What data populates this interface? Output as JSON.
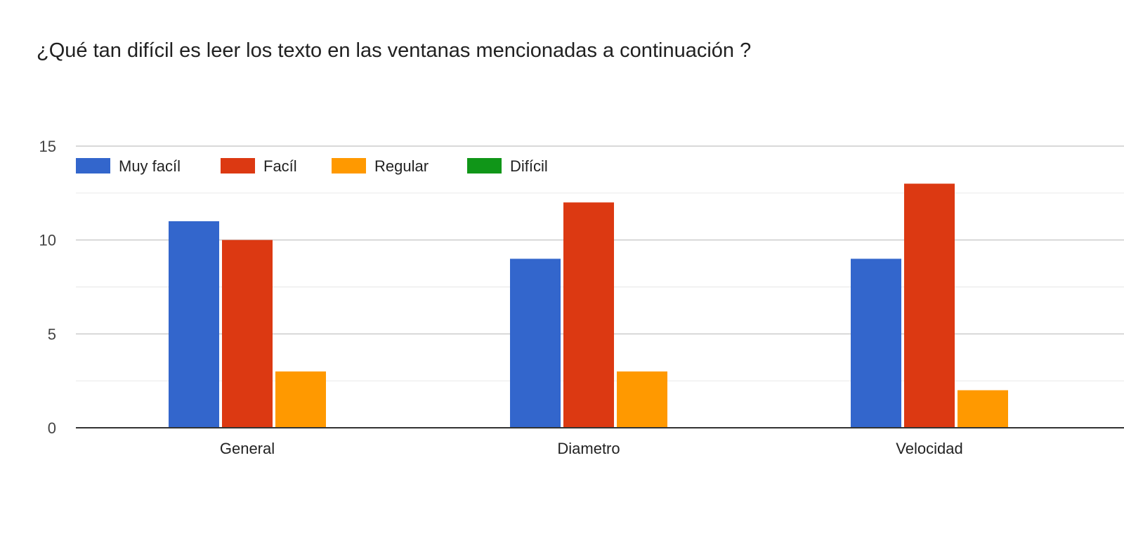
{
  "chart_data": {
    "type": "bar",
    "title": "¿Qué tan difícil es leer los texto en las ventanas mencionadas a continuación ?",
    "categories": [
      "General",
      "Diametro",
      "Velocidad"
    ],
    "series": [
      {
        "name": "Muy facíl",
        "color": "#3366cc",
        "values": [
          11,
          9,
          9
        ]
      },
      {
        "name": "Facíl",
        "color": "#dc3912",
        "values": [
          10,
          12,
          13
        ]
      },
      {
        "name": "Regular",
        "color": "#ff9900",
        "values": [
          3,
          3,
          2
        ]
      },
      {
        "name": "Difícil",
        "color": "#109618",
        "values": [
          0,
          0,
          0
        ]
      }
    ],
    "yticks": [
      "0",
      "5",
      "10",
      "15"
    ],
    "ylim": [
      0,
      15
    ],
    "grid": true,
    "legend_position": "top-left"
  }
}
